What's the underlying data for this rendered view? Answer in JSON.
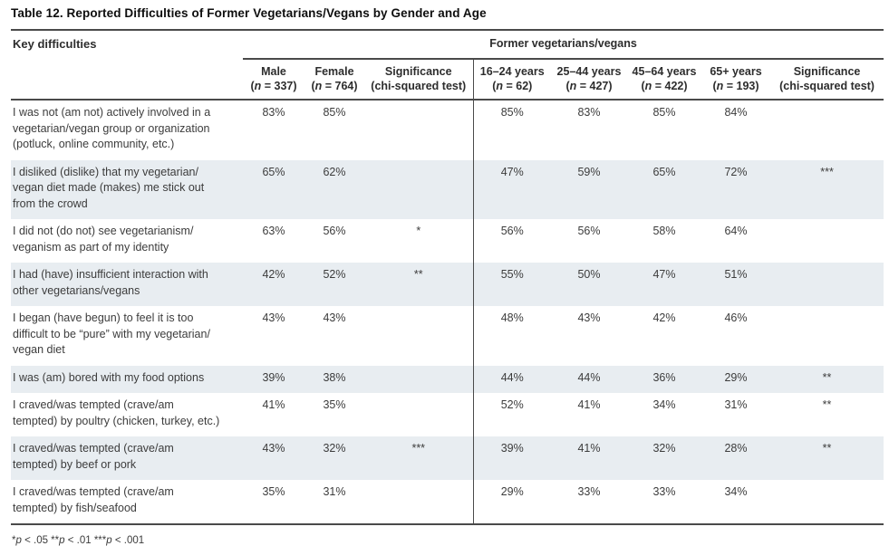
{
  "page": {
    "title": "Table 12. Reported Difficulties of Former Vegetarians/Vegans by Gender and Age",
    "footnote": "*p < .05 **p < .01 ***p < .001"
  },
  "colors": {
    "row_stripe": "#e8edf1",
    "rule": "#4a4a4a",
    "text": "#3c3c3c"
  },
  "table": {
    "key_column_header": "Key difficulties",
    "group_header": "Former vegetarians/vegans",
    "columns": [
      {
        "label": "Male",
        "sub": "(n = 337)"
      },
      {
        "label": "Female",
        "sub": "(n = 764)"
      },
      {
        "label": "Significance",
        "sub": "(chi-squared test)"
      },
      {
        "label": "16–24 years",
        "sub": "(n = 62)"
      },
      {
        "label": "25–44 years",
        "sub": "(n = 427)"
      },
      {
        "label": "45–64 years",
        "sub": "(n = 422)"
      },
      {
        "label": "65+ years",
        "sub": "(n = 193)"
      },
      {
        "label": "Significance",
        "sub": "(chi-squared test)"
      }
    ],
    "rows": [
      {
        "difficulty": "I was not (am not) actively involved in a\nvegetarian/vegan group or organization\n(potluck, online community, etc.)",
        "male": "83%",
        "female": "85%",
        "sig_gender": "",
        "age_16_24": "85%",
        "age_25_44": "83%",
        "age_45_64": "85%",
        "age_65_plus": "84%",
        "sig_age": ""
      },
      {
        "difficulty": "I disliked (dislike) that my vegetarian/\nvegan diet made (makes) me stick out\nfrom the crowd",
        "male": "65%",
        "female": "62%",
        "sig_gender": "",
        "age_16_24": "47%",
        "age_25_44": "59%",
        "age_45_64": "65%",
        "age_65_plus": "72%",
        "sig_age": "***"
      },
      {
        "difficulty": "I did not (do not) see vegetarianism/\nveganism as part of my identity",
        "male": "63%",
        "female": "56%",
        "sig_gender": "*",
        "age_16_24": "56%",
        "age_25_44": "56%",
        "age_45_64": "58%",
        "age_65_plus": "64%",
        "sig_age": ""
      },
      {
        "difficulty": "I had (have) insufficient interaction with\nother vegetarians/vegans",
        "male": "42%",
        "female": "52%",
        "sig_gender": "**",
        "age_16_24": "55%",
        "age_25_44": "50%",
        "age_45_64": "47%",
        "age_65_plus": "51%",
        "sig_age": ""
      },
      {
        "difficulty": "I began (have begun) to feel it is too\ndifficult to be “pure” with my vegetarian/\nvegan diet",
        "male": "43%",
        "female": "43%",
        "sig_gender": "",
        "age_16_24": "48%",
        "age_25_44": "43%",
        "age_45_64": "42%",
        "age_65_plus": "46%",
        "sig_age": ""
      },
      {
        "difficulty": "I was (am) bored with my food options",
        "male": "39%",
        "female": "38%",
        "sig_gender": "",
        "age_16_24": "44%",
        "age_25_44": "44%",
        "age_45_64": "36%",
        "age_65_plus": "29%",
        "sig_age": "**"
      },
      {
        "difficulty": "I craved/was tempted (crave/am\ntempted) by poultry (chicken, turkey, etc.)",
        "male": "41%",
        "female": "35%",
        "sig_gender": "",
        "age_16_24": "52%",
        "age_25_44": "41%",
        "age_45_64": "34%",
        "age_65_plus": "31%",
        "sig_age": "**"
      },
      {
        "difficulty": "I craved/was tempted (crave/am\ntempted) by beef or pork",
        "male": "43%",
        "female": "32%",
        "sig_gender": "***",
        "age_16_24": "39%",
        "age_25_44": "41%",
        "age_45_64": "32%",
        "age_65_plus": "28%",
        "sig_age": "**"
      },
      {
        "difficulty": "I craved/was tempted (crave/am\ntempted) by fish/seafood",
        "male": "35%",
        "female": "31%",
        "sig_gender": "",
        "age_16_24": "29%",
        "age_25_44": "33%",
        "age_45_64": "33%",
        "age_65_plus": "34%",
        "sig_age": ""
      }
    ]
  }
}
